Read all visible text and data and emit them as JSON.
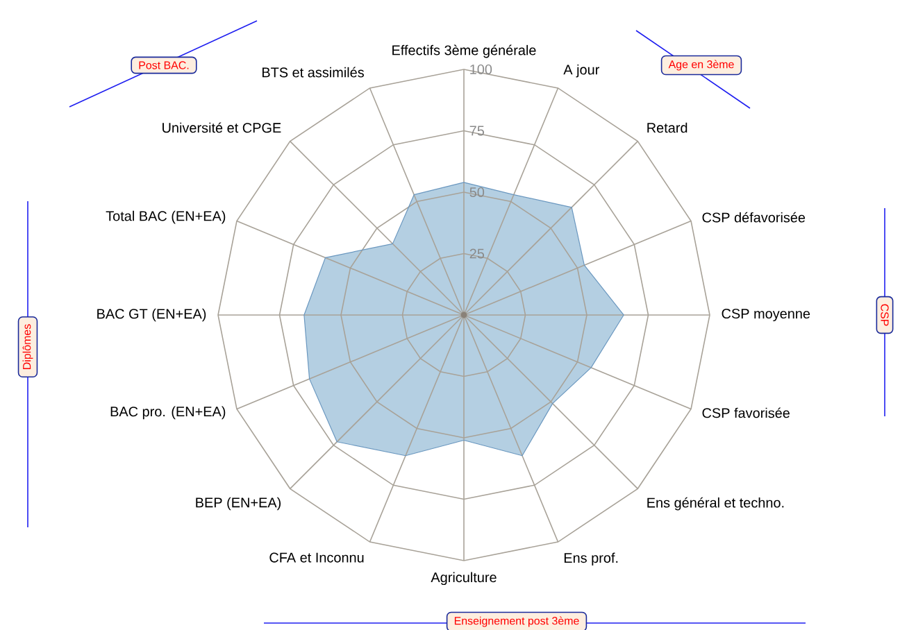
{
  "chart_data": {
    "type": "radar",
    "categories": [
      "Effectifs 3ème générale",
      "A jour",
      "Retard",
      "CSP défavorisée",
      "CSP moyenne",
      "CSP favorisée",
      "Ens général et techno.",
      "Ens prof.",
      "Agriculture",
      "CFA et Inconnu",
      "BEP (EN+EA)",
      "BAC pro. (EN+EA)",
      "BAC GT (EN+EA)",
      "Total BAC (EN+EA)",
      "Université et CPGE",
      "BTS et assimilés"
    ],
    "series": [
      {
        "color": "#b4cfe2",
        "values": [
          54,
          53,
          62,
          53,
          65,
          56,
          51,
          62,
          51,
          62,
          73,
          68,
          65,
          61,
          41,
          53
        ]
      }
    ],
    "ylim": [
      0,
      100
    ],
    "yticks": [
      25,
      50,
      75,
      100
    ],
    "annotations": [
      "Post BAC.",
      "Age en 3ème",
      "CSP",
      "Diplômes",
      "Enseignement post 3ème"
    ]
  }
}
